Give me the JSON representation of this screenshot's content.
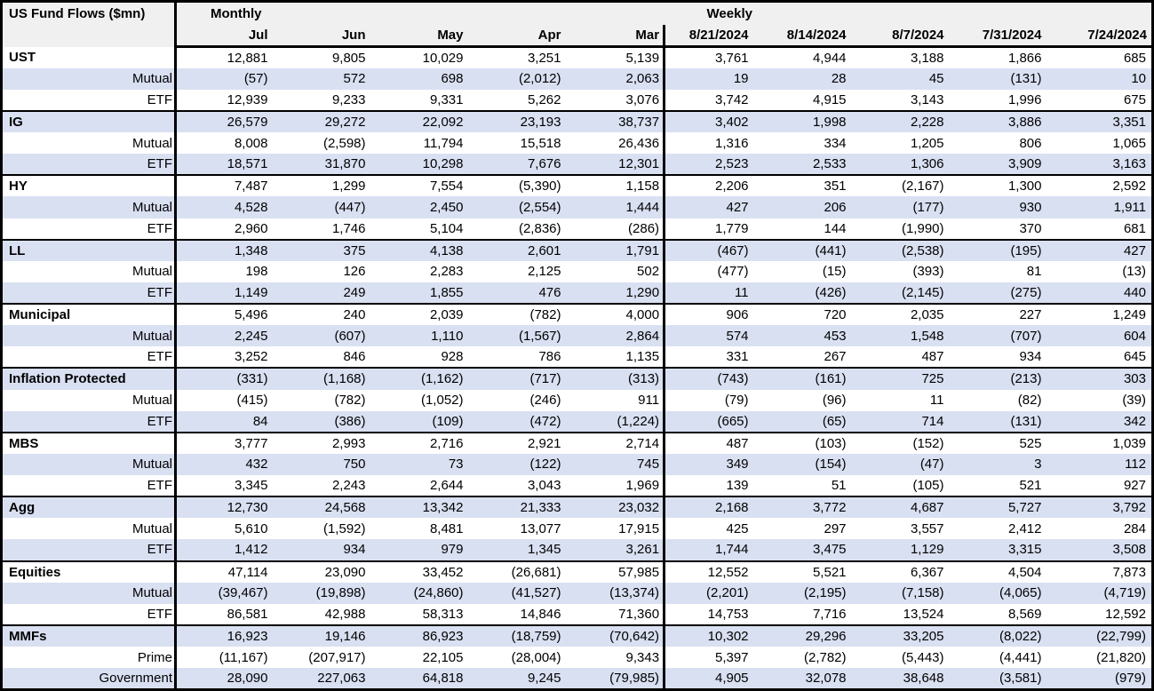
{
  "chart_data": {
    "type": "table",
    "title": "US Fund Flows ($mn)",
    "column_groups": [
      {
        "label": "Monthly",
        "columns": [
          "Jul",
          "Jun",
          "May",
          "Apr",
          "Mar"
        ]
      },
      {
        "label": "Weekly",
        "columns": [
          "8/21/2024",
          "8/14/2024",
          "8/7/2024",
          "7/31/2024",
          "7/24/2024"
        ]
      }
    ],
    "groups": [
      {
        "name": "UST",
        "monthly": [
          "12,881",
          "9,805",
          "10,029",
          "3,251",
          "5,139"
        ],
        "weekly": [
          "3,761",
          "4,944",
          "3,188",
          "1,866",
          "685"
        ],
        "rows": [
          {
            "name": "Mutual",
            "monthly": [
              "(57)",
              "572",
              "698",
              "(2,012)",
              "2,063"
            ],
            "weekly": [
              "19",
              "28",
              "45",
              "(131)",
              "10"
            ]
          },
          {
            "name": "ETF",
            "monthly": [
              "12,939",
              "9,233",
              "9,331",
              "5,262",
              "3,076"
            ],
            "weekly": [
              "3,742",
              "4,915",
              "3,143",
              "1,996",
              "675"
            ]
          }
        ]
      },
      {
        "name": "IG",
        "monthly": [
          "26,579",
          "29,272",
          "22,092",
          "23,193",
          "38,737"
        ],
        "weekly": [
          "3,402",
          "1,998",
          "2,228",
          "3,886",
          "3,351"
        ],
        "rows": [
          {
            "name": "Mutual",
            "monthly": [
              "8,008",
              "(2,598)",
              "11,794",
              "15,518",
              "26,436"
            ],
            "weekly": [
              "1,316",
              "334",
              "1,205",
              "806",
              "1,065"
            ]
          },
          {
            "name": "ETF",
            "monthly": [
              "18,571",
              "31,870",
              "10,298",
              "7,676",
              "12,301"
            ],
            "weekly": [
              "2,523",
              "2,533",
              "1,306",
              "3,909",
              "3,163"
            ]
          }
        ]
      },
      {
        "name": "HY",
        "monthly": [
          "7,487",
          "1,299",
          "7,554",
          "(5,390)",
          "1,158"
        ],
        "weekly": [
          "2,206",
          "351",
          "(2,167)",
          "1,300",
          "2,592"
        ],
        "rows": [
          {
            "name": "Mutual",
            "monthly": [
              "4,528",
              "(447)",
              "2,450",
              "(2,554)",
              "1,444"
            ],
            "weekly": [
              "427",
              "206",
              "(177)",
              "930",
              "1,911"
            ]
          },
          {
            "name": "ETF",
            "monthly": [
              "2,960",
              "1,746",
              "5,104",
              "(2,836)",
              "(286)"
            ],
            "weekly": [
              "1,779",
              "144",
              "(1,990)",
              "370",
              "681"
            ]
          }
        ]
      },
      {
        "name": "LL",
        "monthly": [
          "1,348",
          "375",
          "4,138",
          "2,601",
          "1,791"
        ],
        "weekly": [
          "(467)",
          "(441)",
          "(2,538)",
          "(195)",
          "427"
        ],
        "rows": [
          {
            "name": "Mutual",
            "monthly": [
              "198",
              "126",
              "2,283",
              "2,125",
              "502"
            ],
            "weekly": [
              "(477)",
              "(15)",
              "(393)",
              "81",
              "(13)"
            ]
          },
          {
            "name": "ETF",
            "monthly": [
              "1,149",
              "249",
              "1,855",
              "476",
              "1,290"
            ],
            "weekly": [
              "11",
              "(426)",
              "(2,145)",
              "(275)",
              "440"
            ]
          }
        ]
      },
      {
        "name": "Municipal",
        "monthly": [
          "5,496",
          "240",
          "2,039",
          "(782)",
          "4,000"
        ],
        "weekly": [
          "906",
          "720",
          "2,035",
          "227",
          "1,249"
        ],
        "rows": [
          {
            "name": "Mutual",
            "monthly": [
              "2,245",
              "(607)",
              "1,110",
              "(1,567)",
              "2,864"
            ],
            "weekly": [
              "574",
              "453",
              "1,548",
              "(707)",
              "604"
            ]
          },
          {
            "name": "ETF",
            "monthly": [
              "3,252",
              "846",
              "928",
              "786",
              "1,135"
            ],
            "weekly": [
              "331",
              "267",
              "487",
              "934",
              "645"
            ]
          }
        ]
      },
      {
        "name": "Inflation Protected",
        "monthly": [
          "(331)",
          "(1,168)",
          "(1,162)",
          "(717)",
          "(313)"
        ],
        "weekly": [
          "(743)",
          "(161)",
          "725",
          "(213)",
          "303"
        ],
        "rows": [
          {
            "name": "Mutual",
            "monthly": [
              "(415)",
              "(782)",
              "(1,052)",
              "(246)",
              "911"
            ],
            "weekly": [
              "(79)",
              "(96)",
              "11",
              "(82)",
              "(39)"
            ]
          },
          {
            "name": "ETF",
            "monthly": [
              "84",
              "(386)",
              "(109)",
              "(472)",
              "(1,224)"
            ],
            "weekly": [
              "(665)",
              "(65)",
              "714",
              "(131)",
              "342"
            ]
          }
        ]
      },
      {
        "name": "MBS",
        "monthly": [
          "3,777",
          "2,993",
          "2,716",
          "2,921",
          "2,714"
        ],
        "weekly": [
          "487",
          "(103)",
          "(152)",
          "525",
          "1,039"
        ],
        "rows": [
          {
            "name": "Mutual",
            "monthly": [
              "432",
              "750",
              "73",
              "(122)",
              "745"
            ],
            "weekly": [
              "349",
              "(154)",
              "(47)",
              "3",
              "112"
            ]
          },
          {
            "name": "ETF",
            "monthly": [
              "3,345",
              "2,243",
              "2,644",
              "3,043",
              "1,969"
            ],
            "weekly": [
              "139",
              "51",
              "(105)",
              "521",
              "927"
            ]
          }
        ]
      },
      {
        "name": "Agg",
        "monthly": [
          "12,730",
          "24,568",
          "13,342",
          "21,333",
          "23,032"
        ],
        "weekly": [
          "2,168",
          "3,772",
          "4,687",
          "5,727",
          "3,792"
        ],
        "rows": [
          {
            "name": "Mutual",
            "monthly": [
              "5,610",
              "(1,592)",
              "8,481",
              "13,077",
              "17,915"
            ],
            "weekly": [
              "425",
              "297",
              "3,557",
              "2,412",
              "284"
            ]
          },
          {
            "name": "ETF",
            "monthly": [
              "1,412",
              "934",
              "979",
              "1,345",
              "3,261"
            ],
            "weekly": [
              "1,744",
              "3,475",
              "1,129",
              "3,315",
              "3,508"
            ]
          }
        ]
      },
      {
        "name": "Equities",
        "monthly": [
          "47,114",
          "23,090",
          "33,452",
          "(26,681)",
          "57,985"
        ],
        "weekly": [
          "12,552",
          "5,521",
          "6,367",
          "4,504",
          "7,873"
        ],
        "rows": [
          {
            "name": "Mutual",
            "monthly": [
              "(39,467)",
              "(19,898)",
              "(24,860)",
              "(41,527)",
              "(13,374)"
            ],
            "weekly": [
              "(2,201)",
              "(2,195)",
              "(7,158)",
              "(4,065)",
              "(4,719)"
            ]
          },
          {
            "name": "ETF",
            "monthly": [
              "86,581",
              "42,988",
              "58,313",
              "14,846",
              "71,360"
            ],
            "weekly": [
              "14,753",
              "7,716",
              "13,524",
              "8,569",
              "12,592"
            ]
          }
        ]
      },
      {
        "name": "MMFs",
        "monthly": [
          "16,923",
          "19,146",
          "86,923",
          "(18,759)",
          "(70,642)"
        ],
        "weekly": [
          "10,302",
          "29,296",
          "33,205",
          "(8,022)",
          "(22,799)"
        ],
        "rows": [
          {
            "name": "Prime",
            "monthly": [
              "(11,167)",
              "(207,917)",
              "22,105",
              "(28,004)",
              "9,343"
            ],
            "weekly": [
              "5,397",
              "(2,782)",
              "(5,443)",
              "(4,441)",
              "(21,820)"
            ]
          },
          {
            "name": "Government",
            "monthly": [
              "28,090",
              "227,063",
              "64,818",
              "9,245",
              "(79,985)"
            ],
            "weekly": [
              "4,905",
              "32,078",
              "38,648",
              "(3,581)",
              "(979)"
            ]
          }
        ]
      }
    ]
  },
  "colors": {
    "stripe": "#d9e0f2",
    "header_bg": "#f0f0f0",
    "border": "#000000",
    "text": "#000000"
  }
}
